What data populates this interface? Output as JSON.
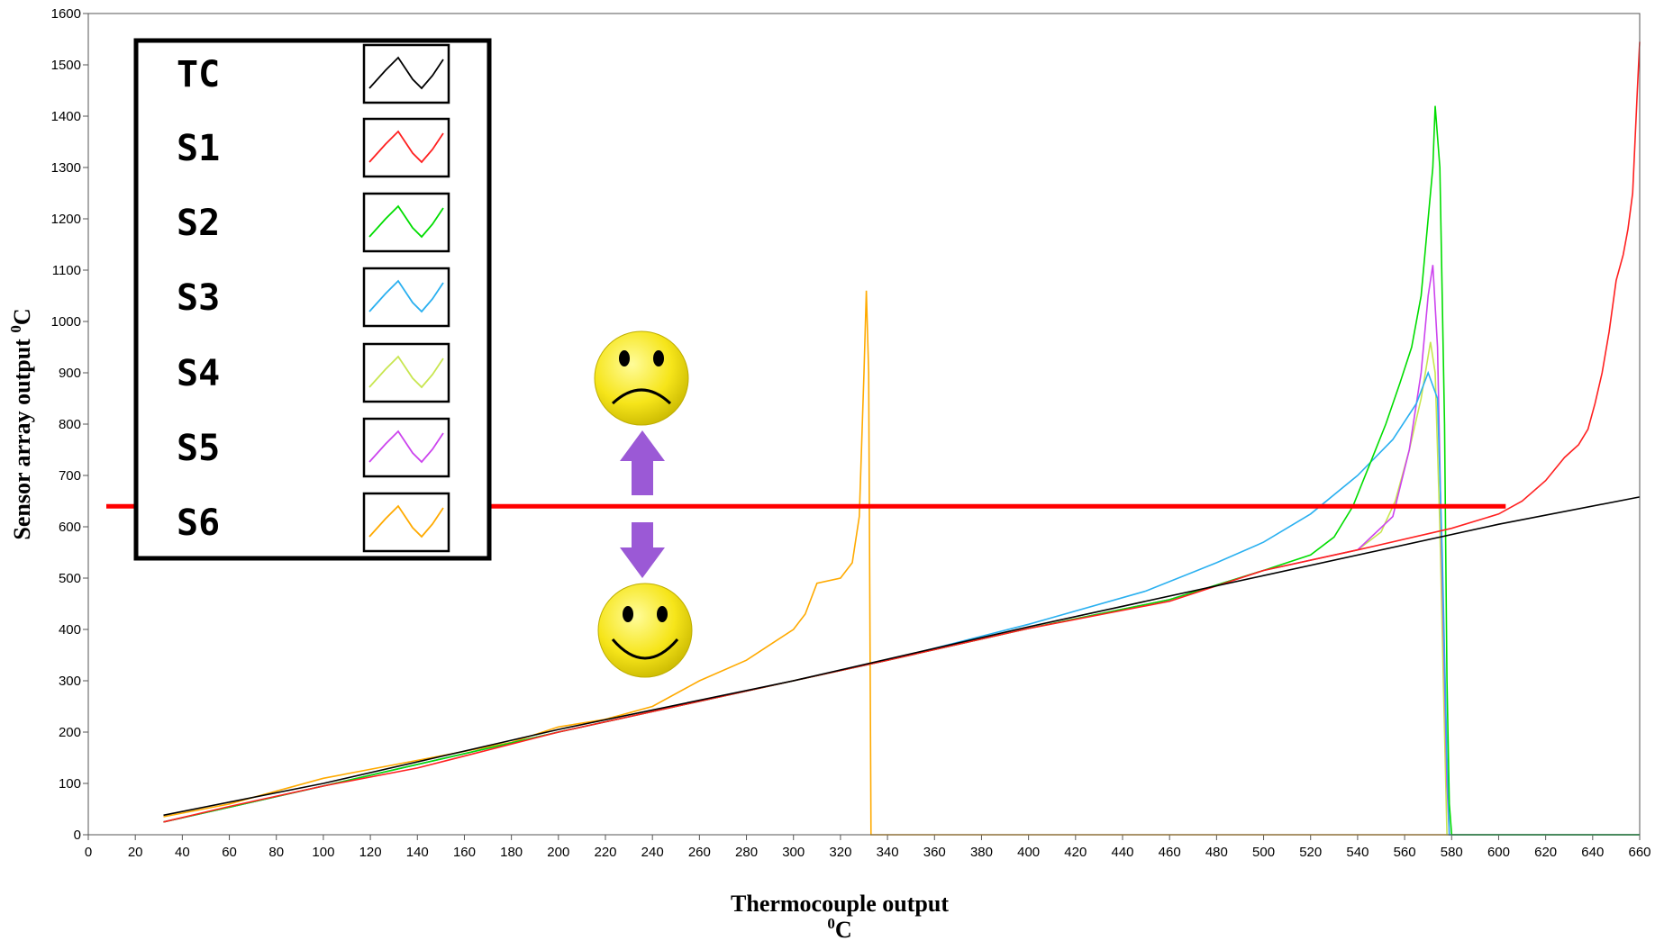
{
  "chart_data": {
    "type": "line",
    "xlabel": "Thermocouple output",
    "xlabel_unit": "0C",
    "ylabel": "Sensor  array output 0C",
    "xlim": [
      0,
      660
    ],
    "ylim": [
      0,
      1600
    ],
    "x_ticks": [
      0,
      20,
      40,
      60,
      80,
      100,
      120,
      140,
      160,
      180,
      200,
      220,
      240,
      260,
      280,
      300,
      320,
      340,
      360,
      380,
      400,
      420,
      440,
      460,
      480,
      500,
      520,
      540,
      560,
      580,
      600,
      620,
      640,
      660
    ],
    "y_ticks": [
      0,
      100,
      200,
      300,
      400,
      500,
      600,
      700,
      800,
      900,
      1000,
      1100,
      1200,
      1300,
      1400,
      1500,
      1600
    ],
    "legend_position": "top-left",
    "reference_line": {
      "y": 640,
      "x_start": 0,
      "x_end": 603,
      "color": "#ff0000"
    },
    "annotations": {
      "sad_face": {
        "x": 237,
        "y": 905,
        "icon": "sad-face-icon"
      },
      "happy_face": {
        "x": 237,
        "y": 410,
        "icon": "happy-face-icon"
      },
      "arrow_up": {
        "x": 237,
        "y_from": 660,
        "y_to": 800,
        "color": "#9b59d6"
      },
      "arrow_down": {
        "x": 237,
        "y_from": 610,
        "y_to": 505,
        "color": "#9b59d6"
      }
    },
    "series": [
      {
        "name": "TC",
        "color": "#000000",
        "points": [
          [
            32,
            38
          ],
          [
            100,
            100
          ],
          [
            200,
            205
          ],
          [
            300,
            300
          ],
          [
            400,
            405
          ],
          [
            500,
            505
          ],
          [
            600,
            605
          ],
          [
            660,
            658
          ]
        ]
      },
      {
        "name": "S1",
        "color": "#ff2020",
        "points": [
          [
            32,
            25
          ],
          [
            60,
            55
          ],
          [
            100,
            95
          ],
          [
            140,
            130
          ],
          [
            200,
            200
          ],
          [
            240,
            240
          ],
          [
            300,
            300
          ],
          [
            340,
            340
          ],
          [
            400,
            402
          ],
          [
            460,
            455
          ],
          [
            500,
            515
          ],
          [
            540,
            555
          ],
          [
            580,
            597
          ],
          [
            600,
            625
          ],
          [
            610,
            650
          ],
          [
            620,
            690
          ],
          [
            628,
            735
          ],
          [
            634,
            760
          ],
          [
            638,
            790
          ],
          [
            641,
            840
          ],
          [
            644,
            900
          ],
          [
            647,
            980
          ],
          [
            650,
            1080
          ],
          [
            653,
            1130
          ],
          [
            655,
            1180
          ],
          [
            657,
            1250
          ],
          [
            658,
            1350
          ],
          [
            659,
            1450
          ],
          [
            660,
            1545
          ]
        ]
      },
      {
        "name": "S2",
        "color": "#00dd00",
        "points": [
          [
            32,
            25
          ],
          [
            100,
            95
          ],
          [
            200,
            200
          ],
          [
            300,
            300
          ],
          [
            340,
            340
          ],
          [
            400,
            402
          ],
          [
            460,
            458
          ],
          [
            500,
            515
          ],
          [
            520,
            545
          ],
          [
            530,
            580
          ],
          [
            538,
            640
          ],
          [
            545,
            720
          ],
          [
            552,
            800
          ],
          [
            558,
            880
          ],
          [
            563,
            950
          ],
          [
            567,
            1050
          ],
          [
            570,
            1200
          ],
          [
            572,
            1300
          ],
          [
            573,
            1420
          ],
          [
            575,
            1300
          ],
          [
            577,
            800
          ],
          [
            578,
            300
          ],
          [
            579,
            60
          ],
          [
            580,
            0
          ],
          [
            660,
            0
          ]
        ]
      },
      {
        "name": "S3",
        "color": "#2ab0f0",
        "points": [
          [
            32,
            25
          ],
          [
            100,
            95
          ],
          [
            200,
            200
          ],
          [
            300,
            300
          ],
          [
            340,
            340
          ],
          [
            400,
            410
          ],
          [
            450,
            475
          ],
          [
            480,
            530
          ],
          [
            500,
            570
          ],
          [
            520,
            625
          ],
          [
            540,
            700
          ],
          [
            555,
            770
          ],
          [
            565,
            840
          ],
          [
            570,
            900
          ],
          [
            574,
            850
          ],
          [
            576,
            550
          ],
          [
            578,
            150
          ],
          [
            579,
            0
          ],
          [
            660,
            0
          ]
        ]
      },
      {
        "name": "S4",
        "color": "#c8e650",
        "points": [
          [
            32,
            25
          ],
          [
            100,
            95
          ],
          [
            200,
            200
          ],
          [
            300,
            300
          ],
          [
            340,
            340
          ],
          [
            400,
            402
          ],
          [
            460,
            458
          ],
          [
            500,
            515
          ],
          [
            540,
            555
          ],
          [
            550,
            590
          ],
          [
            556,
            650
          ],
          [
            562,
            750
          ],
          [
            567,
            850
          ],
          [
            571,
            960
          ],
          [
            573,
            900
          ],
          [
            575,
            600
          ],
          [
            577,
            200
          ],
          [
            578,
            0
          ],
          [
            660,
            0
          ]
        ]
      },
      {
        "name": "S5",
        "color": "#cc44ee",
        "points": [
          [
            32,
            25
          ],
          [
            100,
            95
          ],
          [
            200,
            200
          ],
          [
            300,
            300
          ],
          [
            340,
            340
          ],
          [
            400,
            402
          ],
          [
            460,
            458
          ],
          [
            500,
            515
          ],
          [
            540,
            555
          ],
          [
            555,
            620
          ],
          [
            562,
            750
          ],
          [
            567,
            900
          ],
          [
            570,
            1050
          ],
          [
            572,
            1110
          ],
          [
            574,
            950
          ],
          [
            576,
            500
          ],
          [
            578,
            100
          ],
          [
            579,
            0
          ],
          [
            660,
            0
          ]
        ]
      },
      {
        "name": "S6",
        "color": "#ffaa00",
        "points": [
          [
            32,
            35
          ],
          [
            60,
            60
          ],
          [
            100,
            110
          ],
          [
            140,
            145
          ],
          [
            180,
            180
          ],
          [
            200,
            210
          ],
          [
            220,
            225
          ],
          [
            240,
            250
          ],
          [
            260,
            300
          ],
          [
            280,
            340
          ],
          [
            290,
            370
          ],
          [
            300,
            400
          ],
          [
            305,
            430
          ],
          [
            310,
            490
          ],
          [
            320,
            500
          ],
          [
            325,
            530
          ],
          [
            328,
            620
          ],
          [
            330,
            900
          ],
          [
            331,
            1060
          ],
          [
            332,
            900
          ],
          [
            333,
            0
          ],
          [
            660,
            0
          ]
        ]
      }
    ]
  }
}
